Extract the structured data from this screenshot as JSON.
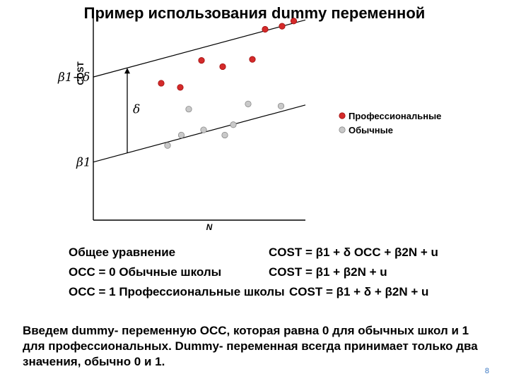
{
  "title": "Пример использования dummy переменной",
  "chart_data": {
    "type": "scatter",
    "ylabel": "COST",
    "xlabel": "N",
    "xlim": [
      0,
      10
    ],
    "ylim": [
      0,
      10
    ],
    "grid": false,
    "legend_position": "right",
    "intercept_labels": {
      "upper": "β1+δ",
      "lower": "β1"
    },
    "shift_label": "δ",
    "lines": [
      {
        "name": "upper",
        "x": [
          0,
          10
        ],
        "y": [
          6.9,
          9.65
        ]
      },
      {
        "name": "lower",
        "x": [
          0,
          10
        ],
        "y": [
          2.8,
          5.55
        ]
      }
    ],
    "series": [
      {
        "name": "Профессиональные",
        "color": "#d42a2a",
        "x": [
          3.2,
          4.1,
          5.1,
          6.1,
          7.5,
          8.1,
          8.9,
          9.45
        ],
        "y": [
          6.6,
          6.4,
          7.7,
          7.4,
          7.75,
          9.2,
          9.35,
          9.6
        ]
      },
      {
        "name": "Обычные",
        "color": "#c9c9c9",
        "x": [
          3.5,
          4.15,
          4.5,
          5.2,
          6.2,
          6.6,
          7.3,
          8.85
        ],
        "y": [
          3.6,
          4.1,
          5.35,
          4.35,
          4.1,
          4.6,
          5.6,
          5.5
        ]
      }
    ]
  },
  "equations": {
    "row1": {
      "left": "Общее уравнение",
      "right": "COST = β1 + δ OCC + β2N + u"
    },
    "row2": {
      "left": "OCC = 0  Обычные школы",
      "right": "COST = β1 + β2N + u"
    },
    "row3": {
      "left": "OCC = 1 Профессиональные школы",
      "right": "COST = β1 + δ + β2N + u"
    }
  },
  "note": "Введем dummy- переменную OCC, которая равна 0 для обычных школ и 1 для профессиональных. Dummy- переменная всегда принимает только два значения, обычно 0 и 1.",
  "page_number": "8"
}
